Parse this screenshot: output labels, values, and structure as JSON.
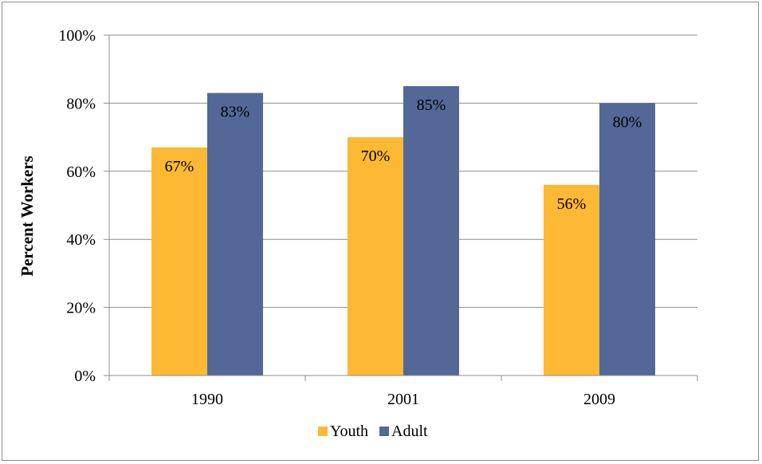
{
  "chart_data": {
    "type": "bar",
    "title": "",
    "xlabel": "",
    "ylabel": "Percent Workers",
    "categories": [
      "1990",
      "2001",
      "2009"
    ],
    "series": [
      {
        "name": "Youth",
        "values": [
          67,
          70,
          56
        ],
        "labels": [
          "67%",
          "70%",
          "56%"
        ],
        "color": "#fdb933"
      },
      {
        "name": "Adult",
        "values": [
          83,
          85,
          80
        ],
        "labels": [
          "83%",
          "85%",
          "80%"
        ],
        "color": "#536897"
      }
    ],
    "ylim": [
      0,
      100
    ],
    "yticks": [
      0,
      20,
      40,
      60,
      80,
      100
    ],
    "ytick_labels": [
      "0%",
      "20%",
      "40%",
      "60%",
      "80%",
      "100%"
    ],
    "grid": true,
    "legend": "bottom"
  }
}
